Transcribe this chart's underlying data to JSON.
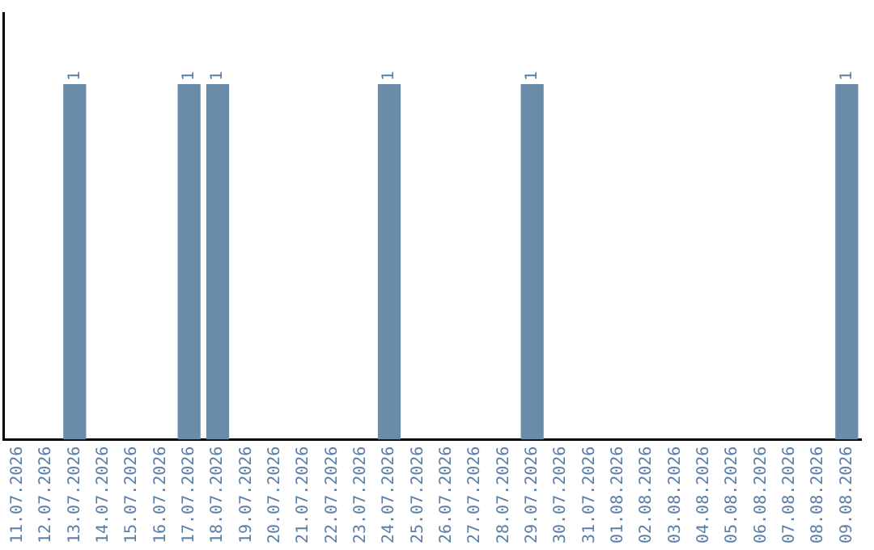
{
  "chart_data": {
    "type": "bar",
    "categories": [
      "11.07.2026",
      "12.07.2026",
      "13.07.2026",
      "14.07.2026",
      "15.07.2026",
      "16.07.2026",
      "17.07.2026",
      "18.07.2026",
      "19.07.2026",
      "20.07.2026",
      "21.07.2026",
      "22.07.2026",
      "23.07.2026",
      "24.07.2026",
      "25.07.2026",
      "26.07.2026",
      "27.07.2026",
      "28.07.2026",
      "29.07.2026",
      "30.07.2026",
      "31.07.2026",
      "01.08.2026",
      "02.08.2026",
      "03.08.2026",
      "04.08.2026",
      "05.08.2026",
      "06.08.2026",
      "07.08.2026",
      "08.08.2026",
      "09.08.2026"
    ],
    "values": [
      0,
      0,
      1,
      0,
      0,
      0,
      1,
      1,
      0,
      0,
      0,
      0,
      0,
      1,
      0,
      0,
      0,
      0,
      1,
      0,
      0,
      0,
      0,
      0,
      0,
      0,
      0,
      0,
      0,
      1
    ],
    "value_labels": [
      null,
      null,
      "1",
      null,
      null,
      null,
      "1",
      "1",
      null,
      null,
      null,
      null,
      null,
      "1",
      null,
      null,
      null,
      null,
      "1",
      null,
      null,
      null,
      null,
      null,
      null,
      null,
      null,
      null,
      null,
      "1"
    ],
    "color": "#6a8cab",
    "tick_labels": "x",
    "grid": false,
    "legend": false
  }
}
